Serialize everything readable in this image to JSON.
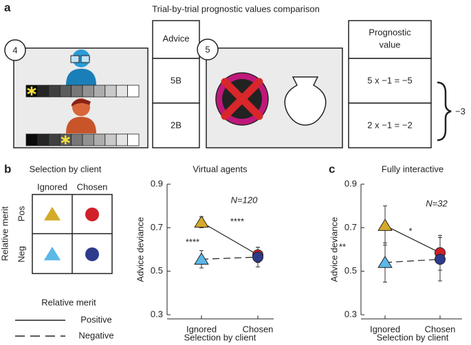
{
  "panel_a": {
    "label": "a",
    "title": "Trial-by-trial prognostic values comparison",
    "step1": "4",
    "step2": "5",
    "table1": {
      "header": [
        "Advice"
      ],
      "rows": [
        "5B",
        "2B"
      ]
    },
    "table2": {
      "header": [
        "Prognostic",
        "value"
      ],
      "rows": [
        "5 x −1 = −5",
        "2 x −1 = −2"
      ]
    },
    "sum": "−3"
  },
  "panel_b": {
    "label": "b",
    "matrix_title": "Selection by client",
    "columns": [
      "Ignored",
      "Chosen"
    ],
    "row_axis": "Relative merit",
    "rows": [
      "Pos",
      "Neg"
    ],
    "legend_title": "Relative merit"
  },
  "panel_c": {
    "label": "c"
  },
  "chart_data": [
    {
      "type": "line",
      "title": "Virtual agents",
      "xlabel": "Selection by client",
      "ylabel": "Advice deviance",
      "categories": [
        "Ignored",
        "Chosen"
      ],
      "ylim": [
        0.3,
        0.9
      ],
      "yticks": [
        0.3,
        0.5,
        0.7,
        0.9
      ],
      "annotation": "N=120",
      "stars": [
        "****",
        "****"
      ],
      "series": [
        {
          "name": "Positive",
          "line_style": "solid",
          "colors": [
            "#d4aa2a",
            "#d0202a"
          ],
          "values": [
            0.725,
            0.575
          ],
          "errors": [
            0.025,
            0.035
          ]
        },
        {
          "name": "Negative",
          "line_style": "dashed",
          "colors": [
            "#5bb8e8",
            "#2e3a8c"
          ],
          "values": [
            0.555,
            0.565
          ],
          "errors": [
            0.04,
            0.045
          ]
        }
      ]
    },
    {
      "type": "line",
      "title": "Fully interactive",
      "xlabel": "Selection by client",
      "ylabel": "Advice deviance",
      "categories": [
        "Ignored",
        "Chosen"
      ],
      "ylim": [
        0.3,
        0.9
      ],
      "yticks": [
        0.3,
        0.5,
        0.7,
        0.9
      ],
      "annotation": "N=32",
      "stars": [
        "**",
        "*"
      ],
      "series": [
        {
          "name": "Positive",
          "line_style": "solid",
          "colors": [
            "#d4aa2a",
            "#d0202a"
          ],
          "values": [
            0.71,
            0.585
          ],
          "errors": [
            0.09,
            0.08
          ]
        },
        {
          "name": "Negative",
          "line_style": "dashed",
          "colors": [
            "#5bb8e8",
            "#2e3a8c"
          ],
          "values": [
            0.54,
            0.555
          ],
          "errors": [
            0.09,
            0.1
          ]
        }
      ]
    }
  ]
}
